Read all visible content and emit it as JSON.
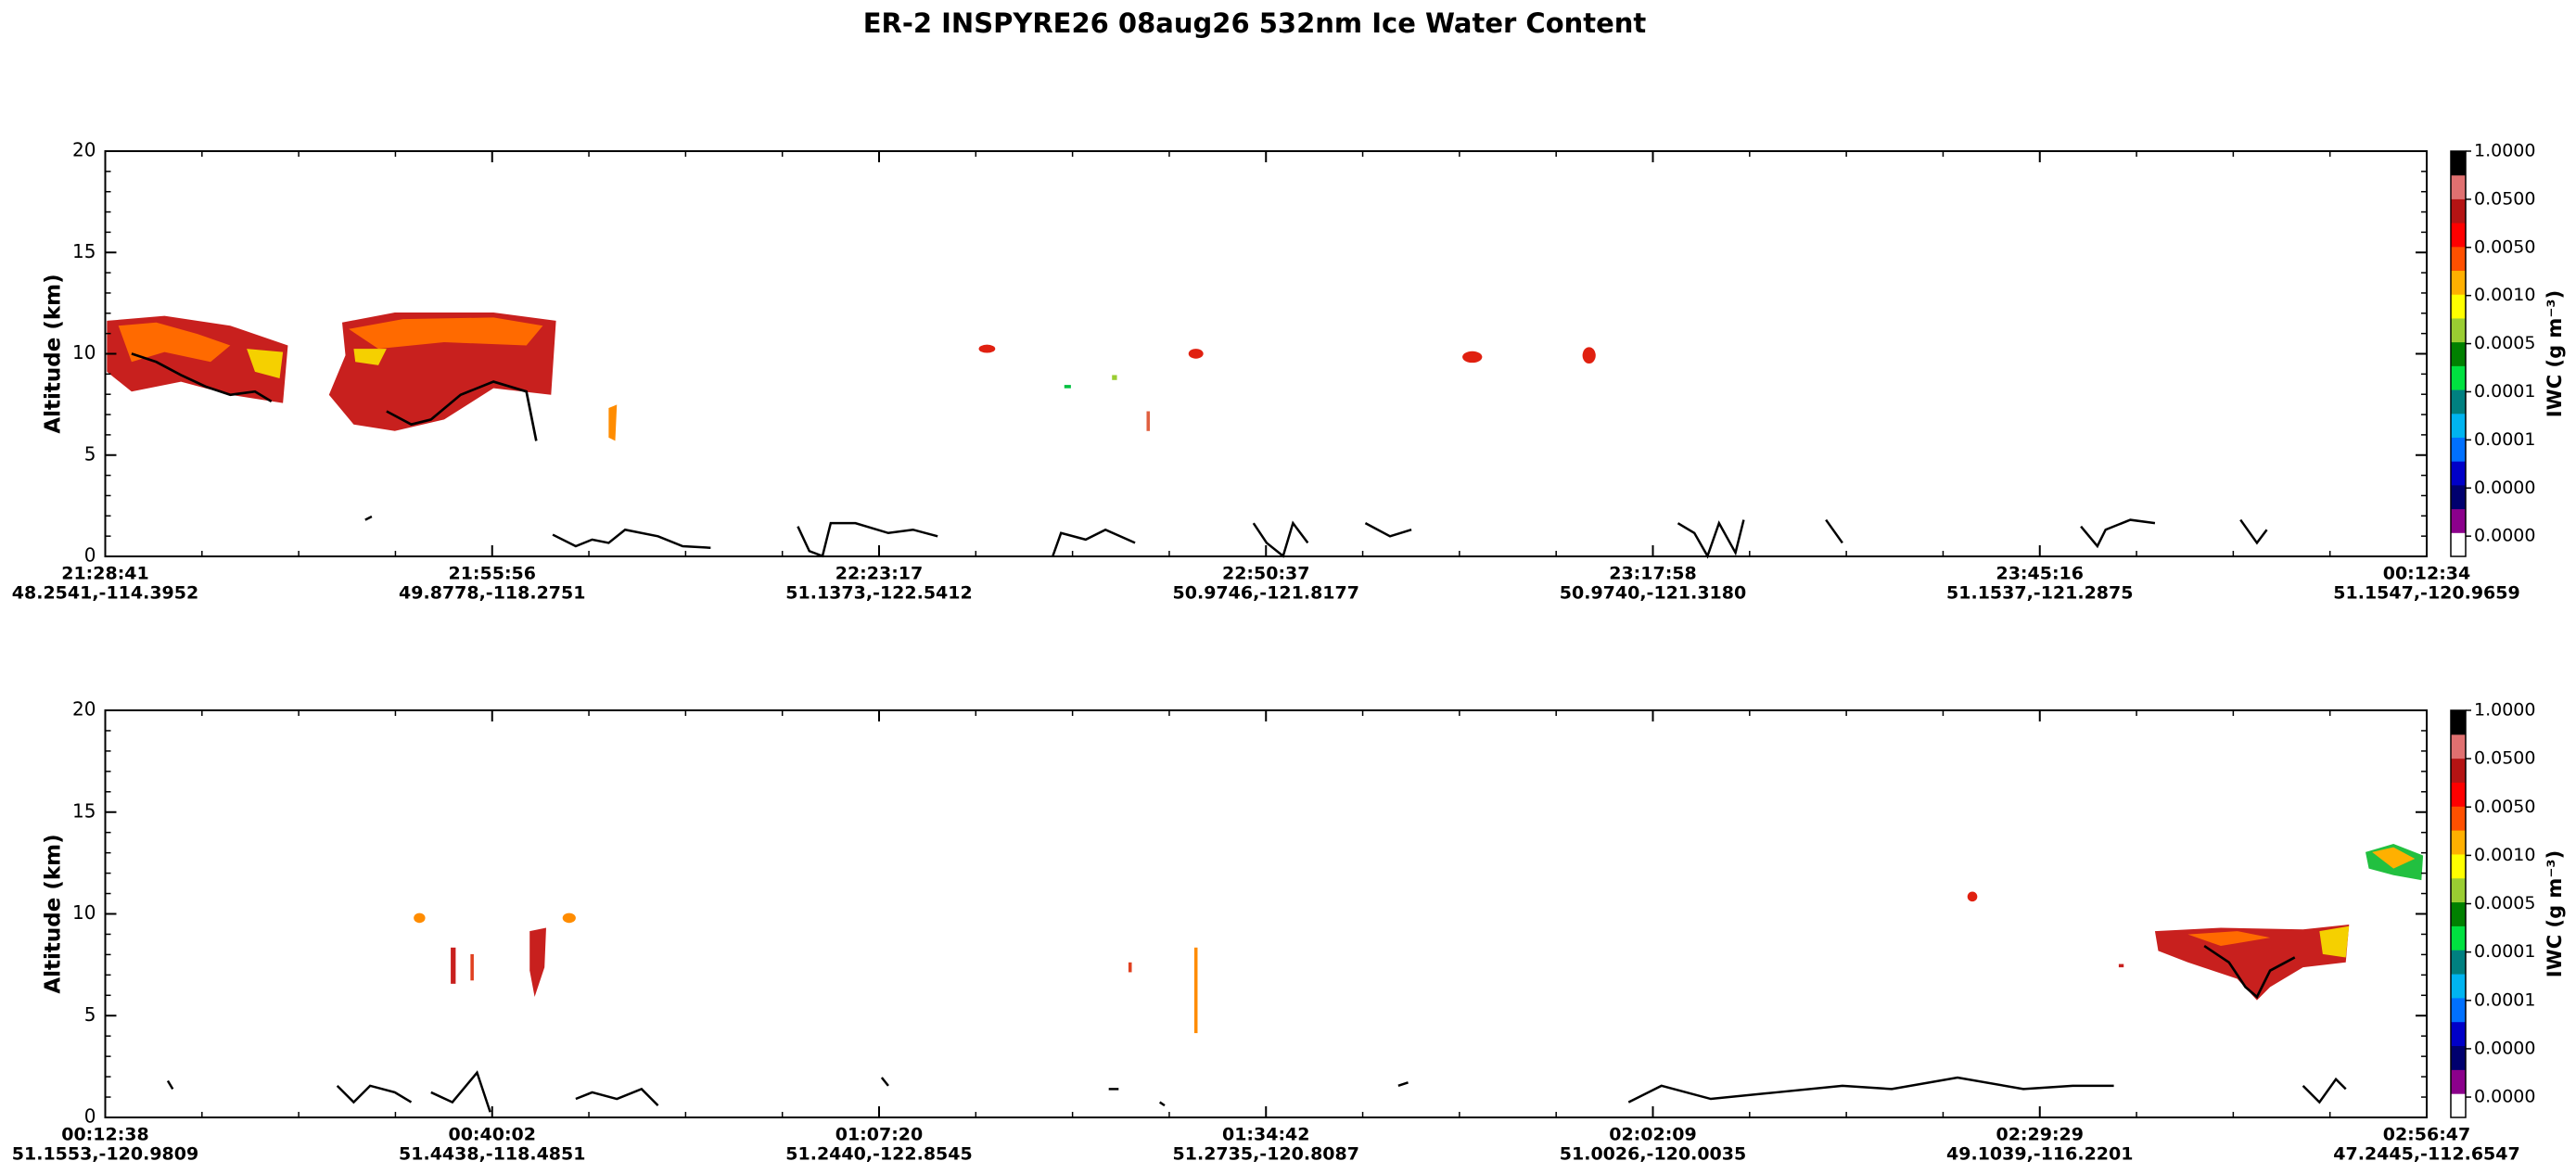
{
  "title": "ER-2  INSPYRE26  08aug26  532nm Ice Water Content",
  "chart_data": [
    {
      "type": "heatmap",
      "y_label": "Altitude (km)",
      "ylim": [
        0,
        20
      ],
      "yticks": [
        0,
        5,
        10,
        15,
        20
      ],
      "x_tick_labels": [
        {
          "time": "21:28:41",
          "location": "48.2541,-114.3952"
        },
        {
          "time": "21:55:56",
          "location": "49.8778,-118.2751"
        },
        {
          "time": "22:23:17",
          "location": "51.1373,-122.5412"
        },
        {
          "time": "22:50:37",
          "location": "50.9746,-121.8177"
        },
        {
          "time": "23:17:58",
          "location": "50.9740,-121.3180"
        },
        {
          "time": "23:45:16",
          "location": "51.1537,-121.2875"
        },
        {
          "time": "00:12:34",
          "location": "51.1547,-120.9659"
        }
      ],
      "colorbar": {
        "label": "IWC (g m⁻³)",
        "tick_labels": [
          "0.0000",
          "0.0000",
          "0.0001",
          "0.0001",
          "0.0005",
          "0.0010",
          "0.0050",
          "0.0500",
          "1.0000"
        ],
        "colors": [
          "#ffffff",
          "#8b008b",
          "#00006e",
          "#0000c8",
          "#0070ff",
          "#00b4f0",
          "#008080",
          "#00e040",
          "#008000",
          "#9acd32",
          "#ffff00",
          "#ffb000",
          "#ff5000",
          "#ff0000",
          "#b41414",
          "#e07070",
          "#000000"
        ]
      }
    },
    {
      "type": "heatmap",
      "y_label": "Altitude (km)",
      "ylim": [
        0,
        20
      ],
      "yticks": [
        0,
        5,
        10,
        15,
        20
      ],
      "x_tick_labels": [
        {
          "time": "00:12:38",
          "location": "51.1553,-120.9809"
        },
        {
          "time": "00:40:02",
          "location": "51.4438,-118.4851"
        },
        {
          "time": "01:07:20",
          "location": "51.2440,-122.8545"
        },
        {
          "time": "01:34:42",
          "location": "51.2735,-120.8087"
        },
        {
          "time": "02:02:09",
          "location": "51.0026,-120.0035"
        },
        {
          "time": "02:29:29",
          "location": "49.1039,-116.2201"
        },
        {
          "time": "02:56:47",
          "location": "47.2445,-112.6547"
        }
      ],
      "colorbar": {
        "label": "IWC (g m⁻³)",
        "tick_labels": [
          "0.0000",
          "0.0000",
          "0.0001",
          "0.0001",
          "0.0005",
          "0.0010",
          "0.0050",
          "0.0500",
          "1.0000"
        ],
        "colors": [
          "#ffffff",
          "#8b008b",
          "#00006e",
          "#0000c8",
          "#0070ff",
          "#00b4f0",
          "#008080",
          "#00e040",
          "#008000",
          "#9acd32",
          "#ffff00",
          "#ffb000",
          "#ff5000",
          "#ff0000",
          "#b41414",
          "#e07070",
          "#000000"
        ]
      }
    }
  ]
}
